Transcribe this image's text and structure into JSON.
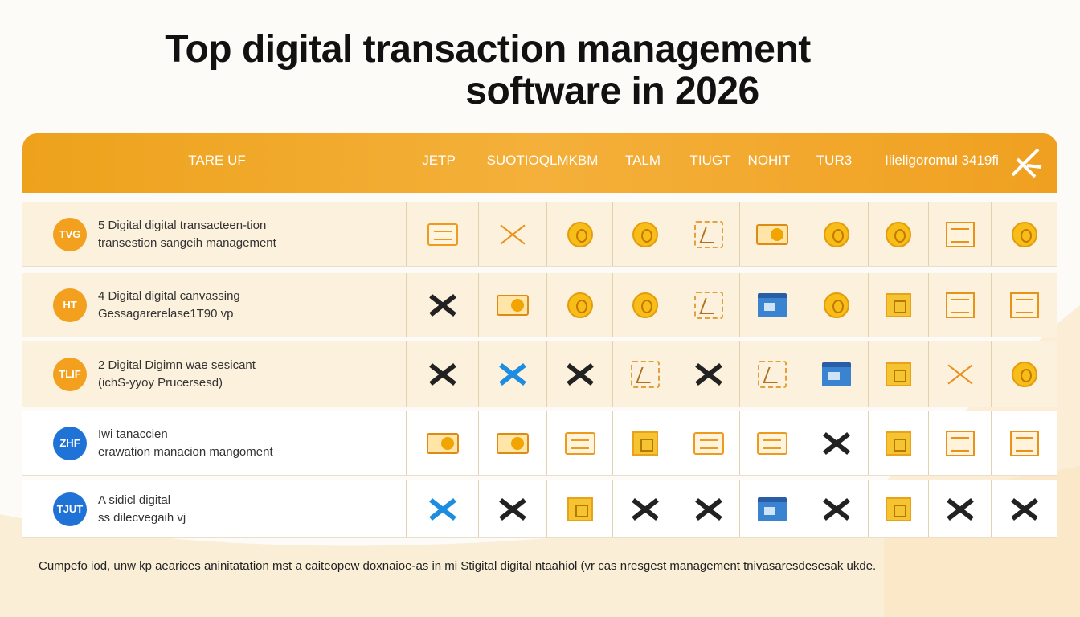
{
  "header": {
    "title_lines": [
      "Top digital transaction management",
      "software in 2026"
    ]
  },
  "table": {
    "columns": [
      "TARE UF",
      "JETP",
      "SUOTIOQLMKBM",
      "TALM",
      "TIUGT",
      "NOHIT",
      "TUR3",
      "Iiieligoromul 3419fi"
    ],
    "rows": [
      {
        "badge": "TVG",
        "name": [
          "5 Digital digital transacteen-tion",
          "transestion sangeih management"
        ]
      },
      {
        "badge": "HT",
        "name": [
          "4 Digital digital canvassing",
          "Gessagarerelase1T90 vp"
        ]
      },
      {
        "badge": "TLIF",
        "name": [
          "2 Digital Digimn wae sesicant",
          "(ichS-yyoy Prucersesd)"
        ]
      },
      {
        "badge": "ZHF",
        "name": [
          "Iwi tanaccien",
          "erawation manacion mangoment"
        ]
      },
      {
        "badge": "TJUT",
        "name": [
          "A sidicl digital",
          "ss dilecvegaih vj"
        ]
      }
    ]
  },
  "footer": {
    "note": "Cumpefo iod, unw kp aearices aninitatation mst a caiteopew doxnaioe-as in mi Stigital digital ntaahiol (vr cas nresgest management tnivasaresdesesak ukde."
  }
}
